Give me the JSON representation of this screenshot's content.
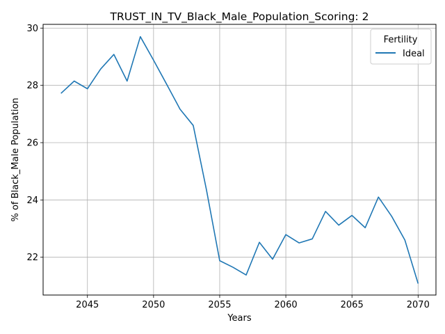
{
  "chart_data": {
    "type": "line",
    "title": "TRUST_IN_TV_Black_Male_Population_Scoring: 2",
    "xlabel": "Years",
    "ylabel": "% of Black_Male Population",
    "xlim": [
      2041.65,
      2071.35
    ],
    "ylim": [
      20.68,
      30.13
    ],
    "xticks": [
      2045,
      2050,
      2055,
      2060,
      2065,
      2070
    ],
    "yticks": [
      22,
      24,
      26,
      28,
      30
    ],
    "grid": true,
    "legend": {
      "title": "Fertility",
      "placement": "upper right"
    },
    "series": [
      {
        "name": "Ideal",
        "color": "#1f77b4",
        "x": [
          2043,
          2044,
          2045,
          2046,
          2047,
          2048,
          2049,
          2050,
          2051,
          2052,
          2053,
          2054,
          2055,
          2056,
          2057,
          2058,
          2059,
          2060,
          2061,
          2062,
          2063,
          2064,
          2065,
          2066,
          2067,
          2068,
          2069,
          2070
        ],
        "y": [
          27.72,
          28.15,
          27.88,
          28.57,
          29.08,
          28.15,
          29.7,
          28.88,
          28.03,
          27.17,
          26.6,
          24.35,
          21.88,
          21.65,
          21.38,
          22.52,
          21.93,
          22.79,
          22.5,
          22.64,
          23.6,
          23.12,
          23.46,
          23.03,
          24.1,
          23.43,
          22.6,
          21.08
        ]
      }
    ]
  }
}
